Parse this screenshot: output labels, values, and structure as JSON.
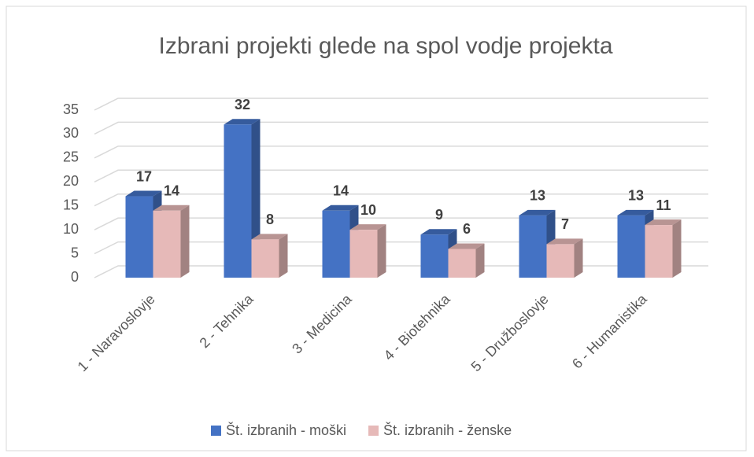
{
  "chart_data": {
    "type": "bar3d",
    "title": "Izbrani projekti glede na spol vodje projekta",
    "categories": [
      "1 - Naravoslovje",
      "2 - Tehnika",
      "3 - Medicina",
      "4 - Biotehnika",
      "5 - Družboslovje",
      "6 - Humanistika"
    ],
    "series": [
      {
        "name": "Št. izbranih - moški",
        "color": "#4472c4",
        "values": [
          17,
          32,
          14,
          9,
          13,
          13
        ]
      },
      {
        "name": "Št. izbranih - ženske",
        "color": "#e6b9b8",
        "values": [
          14,
          8,
          10,
          6,
          7,
          11
        ]
      }
    ],
    "ylim": [
      0,
      35
    ],
    "yticks": [
      0,
      5,
      10,
      15,
      20,
      25,
      30,
      35
    ],
    "grid": true,
    "legend": "bottom"
  }
}
